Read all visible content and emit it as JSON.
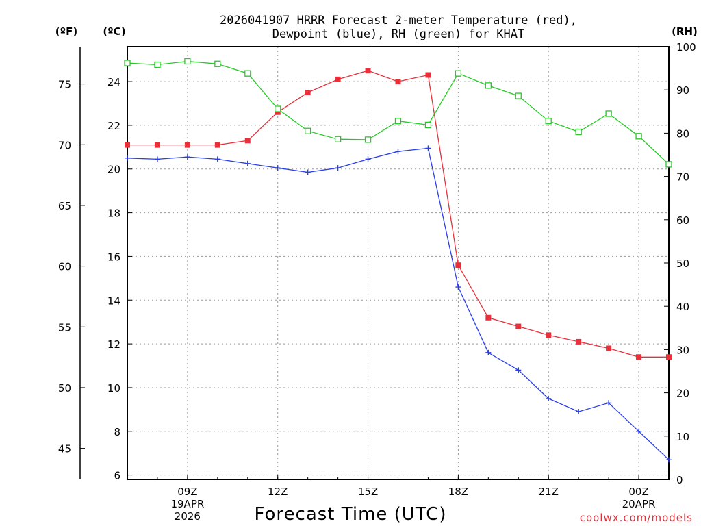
{
  "title": {
    "line1": "2026041907 HRRR Forecast 2-meter Temperature (red),",
    "line2": "Dewpoint (blue), RH (green) for KHAT"
  },
  "units": {
    "fahrenheit": "(ºF)",
    "celsius": "(ºC)",
    "rh": "(RH)"
  },
  "credit": "coolwx.com/models",
  "colors": {
    "temperature": "#e8303a",
    "dewpoint": "#2a3fe8",
    "rh": "#22cc22"
  },
  "chart_data": {
    "type": "line",
    "title": "2026041907 HRRR Forecast 2-meter Temperature (red), Dewpoint (blue), RH (green) for KHAT",
    "xlabel": "Forecast Time (UTC)",
    "ylabel_left_outer": "(ºF)",
    "ylabel_left_inner": "(ºC)",
    "ylabel_right": "(RH)",
    "x": [
      "07Z",
      "08Z",
      "09Z",
      "10Z",
      "11Z",
      "12Z",
      "13Z",
      "14Z",
      "15Z",
      "16Z",
      "17Z",
      "18Z",
      "19Z",
      "20Z",
      "21Z",
      "22Z",
      "23Z",
      "00Z",
      "01Z"
    ],
    "x_ticks": [
      {
        "hour": 2,
        "lines": [
          "09Z",
          "19APR",
          "2026"
        ]
      },
      {
        "hour": 5,
        "lines": [
          "12Z"
        ]
      },
      {
        "hour": 8,
        "lines": [
          "15Z"
        ]
      },
      {
        "hour": 11,
        "lines": [
          "18Z"
        ]
      },
      {
        "hour": 14,
        "lines": [
          "21Z"
        ]
      },
      {
        "hour": 17,
        "lines": [
          "00Z",
          "20APR"
        ]
      }
    ],
    "celsius_axis": {
      "range": [
        5.8,
        25.6
      ],
      "ticks": [
        6,
        8,
        10,
        12,
        14,
        16,
        18,
        20,
        22,
        24
      ]
    },
    "fahrenheit_axis": {
      "ticks": [
        45,
        50,
        55,
        60,
        65,
        70,
        75
      ]
    },
    "rh_axis": {
      "range": [
        0,
        100
      ],
      "ticks": [
        0,
        10,
        20,
        30,
        40,
        50,
        60,
        70,
        80,
        90,
        100
      ]
    },
    "grid": true,
    "series": [
      {
        "name": "Temperature (°C)",
        "axis": "celsius",
        "marker": "filled-square",
        "values": [
          21.1,
          21.1,
          21.1,
          21.1,
          21.3,
          22.6,
          23.5,
          24.1,
          24.5,
          24.0,
          24.3,
          15.6,
          13.2,
          12.8,
          12.4,
          12.1,
          11.8,
          11.4,
          11.4
        ]
      },
      {
        "name": "Dewpoint (°C)",
        "axis": "celsius",
        "marker": "plus",
        "values": [
          20.5,
          20.45,
          20.55,
          20.45,
          20.25,
          20.05,
          19.85,
          20.05,
          20.45,
          20.8,
          20.95,
          14.6,
          11.6,
          10.8,
          9.5,
          8.9,
          9.3,
          8.0,
          6.7
        ]
      },
      {
        "name": "RH (%)",
        "axis": "rh",
        "marker": "open-square",
        "values": [
          96.2,
          95.8,
          96.6,
          96.0,
          93.8,
          85.6,
          80.5,
          78.6,
          78.5,
          82.8,
          81.9,
          93.8,
          91.0,
          88.6,
          82.8,
          80.3,
          84.5,
          79.3,
          72.8
        ]
      }
    ]
  }
}
